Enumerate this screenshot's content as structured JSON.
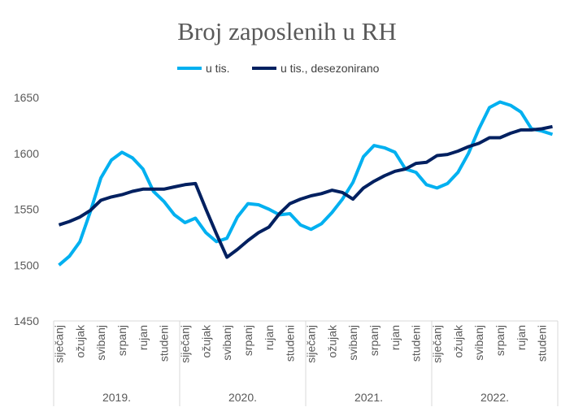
{
  "chart_data": {
    "type": "line",
    "title": "Broj zaposlenih u RH",
    "xlabel": "",
    "ylabel": "",
    "ylim": [
      1450,
      1650
    ],
    "yticks": [
      1450,
      1500,
      1550,
      1600,
      1650
    ],
    "grid": false,
    "legend_position": "top",
    "years": [
      "2019.",
      "2020.",
      "2021.",
      "2022."
    ],
    "month_labels": [
      "siječanj",
      "",
      "ožujak",
      "",
      "svibanj",
      "",
      "srpanj",
      "",
      "rujan",
      "",
      "studeni",
      ""
    ],
    "series": [
      {
        "name": "u tis.",
        "color": "#00B0F0",
        "values": [
          1500,
          1508,
          1521,
          1548,
          1578,
          1594,
          1601,
          1596,
          1586,
          1566,
          1557,
          1545,
          1538,
          1542,
          1529,
          1521,
          1524,
          1543,
          1555,
          1554,
          1550,
          1545,
          1546,
          1536,
          1532,
          1537,
          1547,
          1559,
          1574,
          1597,
          1607,
          1605,
          1601,
          1586,
          1583,
          1572,
          1569,
          1573,
          1583,
          1600,
          1622,
          1641,
          1646,
          1643,
          1637,
          1622,
          1620,
          1617
        ]
      },
      {
        "name": "u tis., desezonirano",
        "color": "#002060",
        "values": [
          1536,
          1539,
          1543,
          1549,
          1558,
          1561,
          1563,
          1566,
          1568,
          1568,
          1568,
          1570,
          1572,
          1573,
          1550,
          1528,
          1507,
          1514,
          1522,
          1529,
          1534,
          1546,
          1555,
          1559,
          1562,
          1564,
          1567,
          1565,
          1559,
          1569,
          1575,
          1580,
          1584,
          1586,
          1591,
          1592,
          1598,
          1599,
          1602,
          1606,
          1609,
          1614,
          1614,
          1618,
          1621,
          1621,
          1622,
          1624
        ]
      }
    ]
  }
}
